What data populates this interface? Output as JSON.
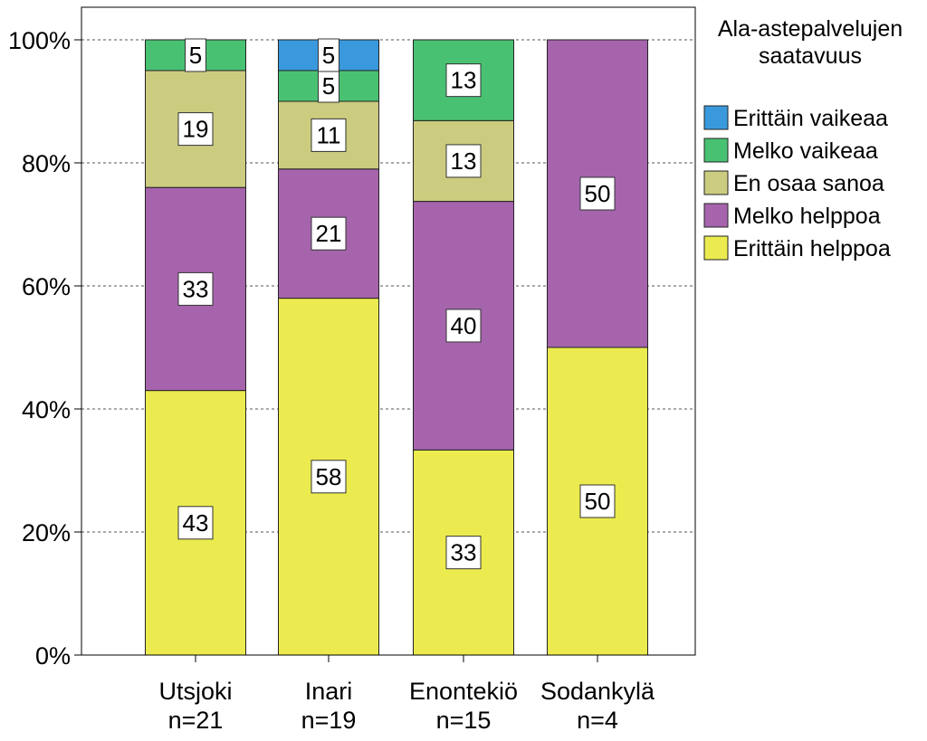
{
  "chart_data": {
    "type": "bar",
    "stacked": true,
    "normalized_percent": true,
    "categories": [
      "Utsjoki",
      "Inari",
      "Enontekiö",
      "Sodankylä"
    ],
    "category_sublabels": [
      "n=21",
      "n=19",
      "n=15",
      "n=4"
    ],
    "series": [
      {
        "name": "Erittäin helppoa",
        "color": "#ebeb50",
        "values": [
          43,
          58,
          33,
          50
        ],
        "labels": [
          "43",
          "58",
          "33",
          "50"
        ]
      },
      {
        "name": "Melko helppoa",
        "color": "#a664ad",
        "values": [
          33,
          21,
          40,
          50
        ],
        "labels": [
          "33",
          "21",
          "40",
          "50"
        ]
      },
      {
        "name": "En osaa sanoa",
        "color": "#cccc80",
        "values": [
          19,
          11,
          13,
          0
        ],
        "labels": [
          "19",
          "11",
          "13",
          ""
        ]
      },
      {
        "name": "Melko vaikeaa",
        "color": "#49c173",
        "values": [
          5,
          5,
          13,
          0
        ],
        "labels": [
          "5",
          "5",
          "13",
          ""
        ]
      },
      {
        "name": "Erittäin vaikeaa",
        "color": "#3a99dc",
        "values": [
          0,
          5,
          0,
          0
        ],
        "labels": [
          "",
          "5",
          "",
          ""
        ]
      }
    ],
    "legend_order": [
      "Erittäin vaikeaa",
      "Melko vaikeaa",
      "En osaa sanoa",
      "Melko helppoa",
      "Erittäin helppoa"
    ],
    "legend_title_lines": [
      "Ala-astepalvelujen",
      "saatavuus"
    ],
    "y_ticks": [
      "0%",
      "20%",
      "40%",
      "60%",
      "80%",
      "100%"
    ],
    "ylim": [
      0,
      100
    ],
    "grid": true,
    "legend_position": "right"
  }
}
